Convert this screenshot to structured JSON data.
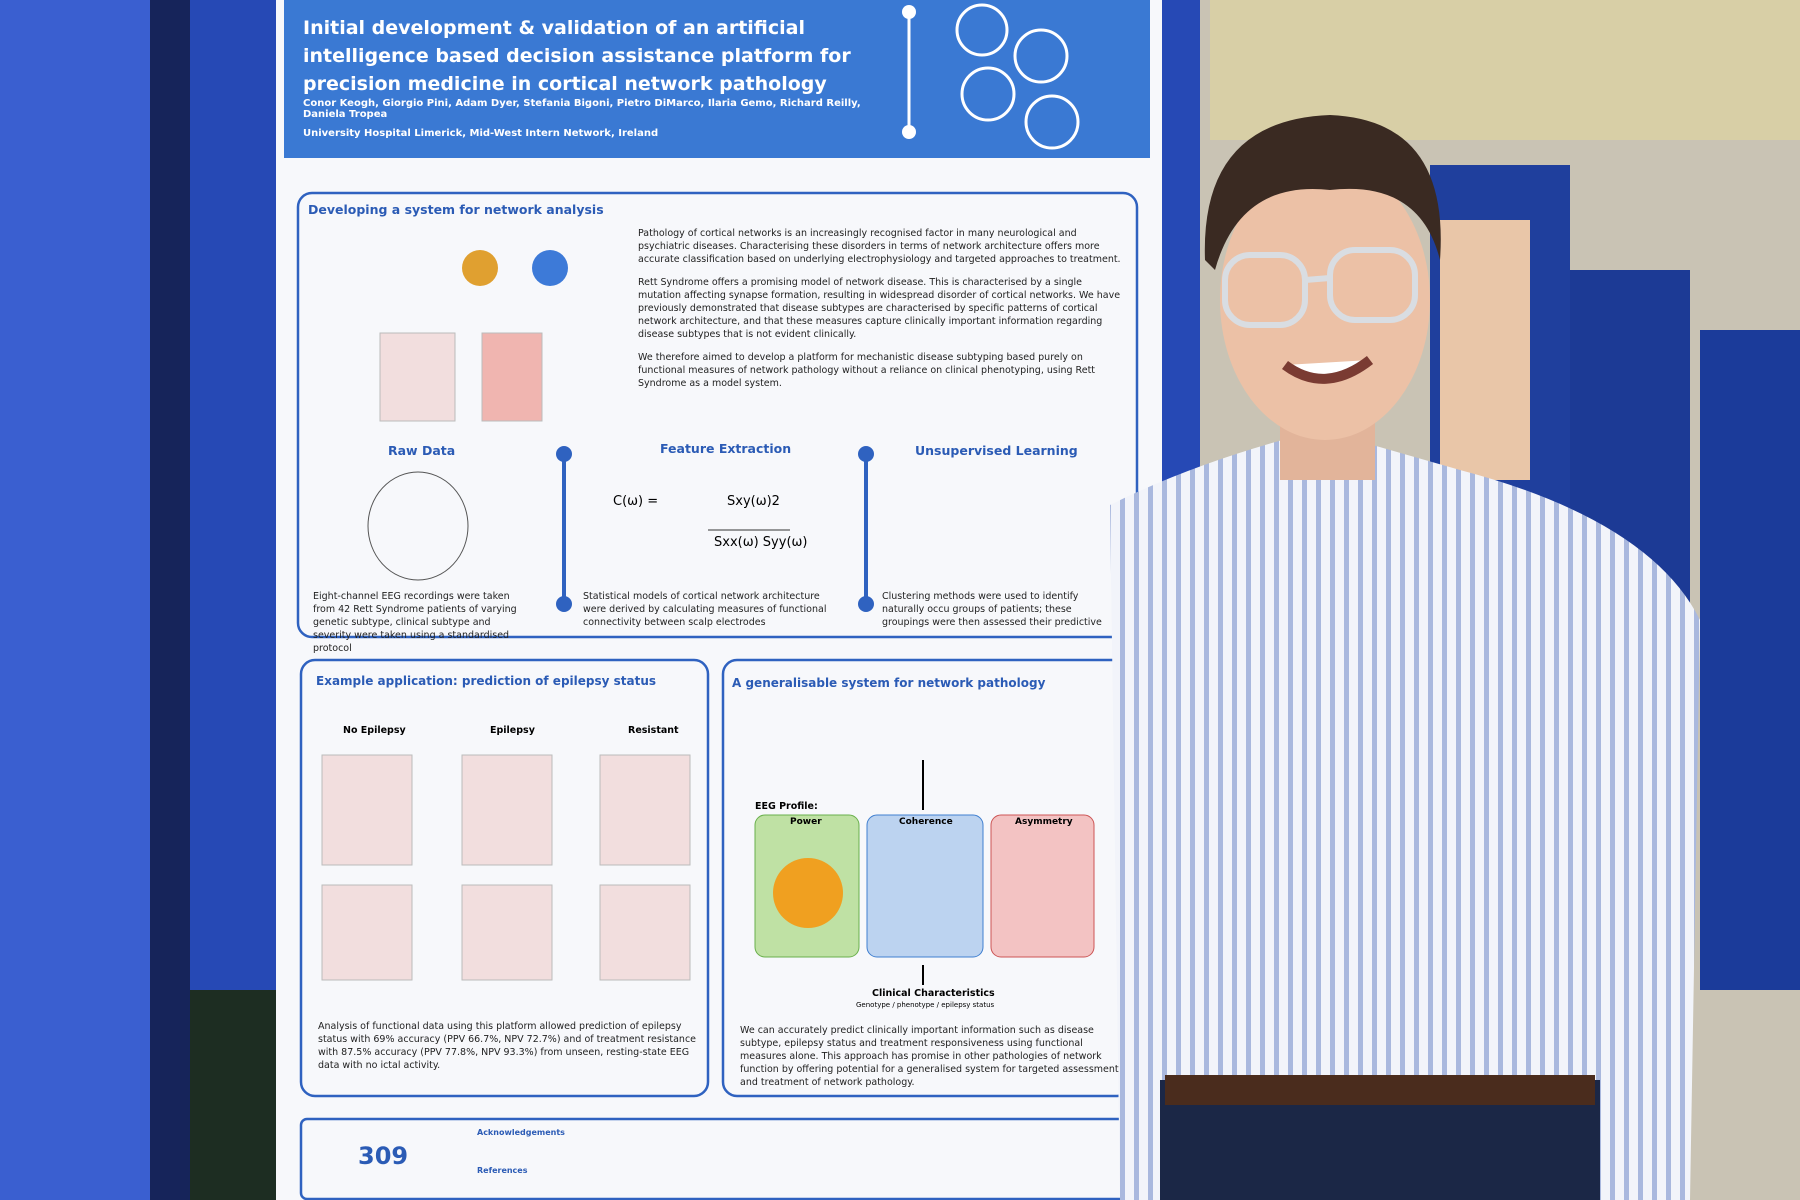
{
  "header": {
    "title": "Initial development & validation of an artificial intelligence based decision assistance platform for precision medicine in cortical network pathology",
    "authors": "Conor Keogh, Giorgio Pini, Adam Dyer, Stefania Bigoni, Pietro DiMarco, Ilaria Gemo, Richard Reilly, Daniela Tropea",
    "affiliation": "University Hospital Limerick, Mid-West Intern Network, Ireland"
  },
  "section1": {
    "title": "Developing a system for network analysis",
    "paragraphs": [
      "Pathology of cortical networks is an increasingly recognised factor in many neurological and psychiatric diseases. Characterising these disorders in terms of network architecture offers more accurate classification based on underlying electrophysiology and targeted approaches to treatment.",
      "Rett Syndrome offers a promising model of network disease. This is characterised by a single mutation affecting synapse formation, resulting in widespread disorder of cortical networks. We have previously demonstrated that disease subtypes are characterised by specific patterns of cortical network architecture, and that these measures capture clinically important information regarding disease subtypes that is not evident clinically.",
      "We therefore aimed to develop a platform for mechanistic disease subtyping based purely on functional measures of network pathology without a reliance on clinical phenotyping, using Rett Syndrome as a model system."
    ],
    "steps": [
      {
        "title": "Raw Data",
        "caption": "Eight-channel EEG recordings were taken from 42 Rett Syndrome patients of varying genetic subtype, clinical subtype and severity were taken using a standardised protocol"
      },
      {
        "title": "Feature Extraction",
        "caption": "Statistical models of cortical network architecture were derived by calculating measures of functional connectivity between scalp electrodes"
      },
      {
        "title": "Unsupervised Learning",
        "caption": "Clustering methods were used to identify naturally occu groups of patients; these groupings were then assessed their predictive value on unseen data"
      }
    ],
    "formula": {
      "lhs": "C(ω) =",
      "numerator": "Sxy(ω)2",
      "denominator": "Sxx(ω) Syy(ω)"
    }
  },
  "section2": {
    "title": "Example application: prediction of epilepsy status",
    "columns": [
      "No Epilepsy",
      "Epilepsy",
      "Resistant"
    ],
    "caption": "Analysis of functional data using this platform allowed prediction of epilepsy status with 69% accuracy (PPV 66.7%, NPV 72.7%) and of treatment resistance with 87.5% accuracy (PPV 77.8%, NPV 93.3%) from unseen, resting-state EEG data with no ictal activity."
  },
  "section3": {
    "title": "A generalisable system for network pathology",
    "eeg_profile": "EEG Profile:",
    "panels": [
      "Power",
      "Coherence",
      "Asymmetry"
    ],
    "clinical": "Clinical Characteristics",
    "clinical_sub": "Genotype / phenotype / epilepsy status",
    "caption": "We can accurately predict clinically important information such as disease subtype, epilepsy status and treatment responsiveness using functional measures alone. This approach has promise in other pathologies of network function by offering potential for a generalised system for targeted assessment and treatment of network pathology."
  },
  "footer": {
    "number": "309",
    "acknowledgements": "Acknowledgements",
    "references": "References"
  }
}
